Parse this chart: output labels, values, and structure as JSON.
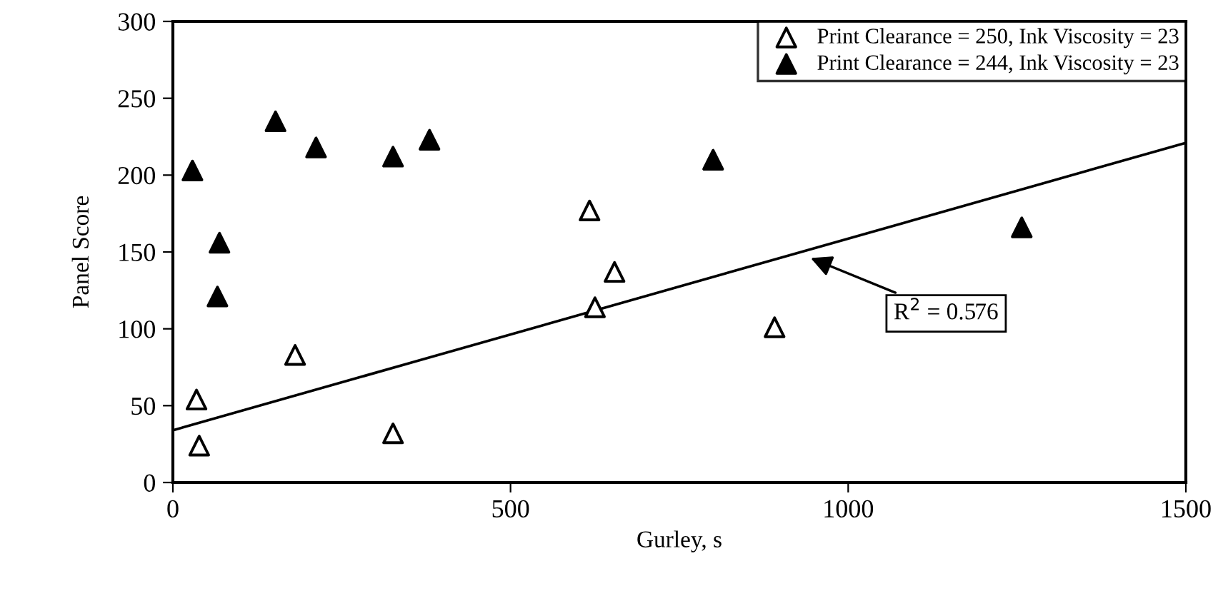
{
  "chart_data": {
    "type": "scatter",
    "xlabel": "Gurley, s",
    "ylabel": "Panel Score",
    "xlim": [
      0,
      1500
    ],
    "xticks": [
      0,
      500,
      1000,
      1500
    ],
    "ylim": [
      0,
      300
    ],
    "yticks": [
      0,
      50,
      100,
      150,
      200,
      250,
      300
    ],
    "grid": false,
    "legend": "top right",
    "series": [
      {
        "name": "Print Clearance = 250, Ink Viscosity = 23",
        "color": "#ffffff",
        "marker": "triangle",
        "x": [
          35,
          39,
          181,
          326,
          617,
          625,
          654,
          891
        ],
        "values": [
          54,
          24,
          83,
          32,
          177,
          114,
          137,
          101
        ]
      },
      {
        "name": "Print Clearance = 244, Ink Viscosity = 23",
        "color": "#000000",
        "marker": "triangle",
        "x": [
          29,
          69,
          66,
          152,
          212,
          326,
          380,
          800,
          1257
        ],
        "values": [
          203,
          156,
          121,
          235,
          218,
          212,
          223,
          210,
          166
        ]
      },
      {
        "type": "line",
        "color": "#000000",
        "x": [
          0,
          1500
        ],
        "values": [
          34,
          221
        ]
      }
    ],
    "annotations": [
      {
        "text": "R$^{2}$ = 0.576",
        "x": 939,
        "y": 147
      }
    ]
  }
}
